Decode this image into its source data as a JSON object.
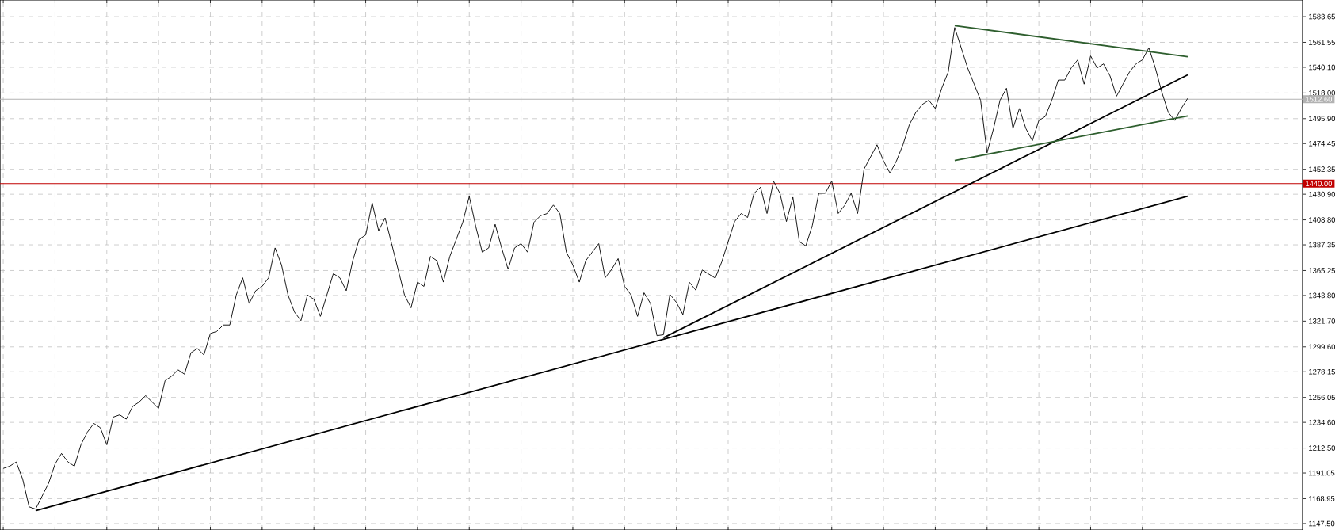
{
  "chart_data": {
    "type": "line",
    "categories": [
      null,
      null,
      null,
      null,
      null,
      null,
      null,
      null,
      null,
      null,
      null,
      null,
      null,
      null,
      null,
      null,
      null,
      null,
      null,
      null,
      null,
      null,
      null,
      null,
      null,
      null,
      null,
      null,
      null,
      null,
      null,
      null,
      null,
      null,
      null,
      null,
      null,
      null,
      null,
      null,
      null,
      null,
      null,
      null,
      null,
      null,
      null,
      null,
      null,
      null,
      null,
      null,
      null,
      null,
      null,
      null,
      null,
      null,
      null,
      null,
      null,
      null,
      null,
      null,
      null,
      null,
      null,
      null,
      null,
      null,
      null,
      null,
      null,
      null,
      null,
      null,
      null,
      null,
      null,
      null,
      null,
      null,
      null,
      null,
      null,
      null,
      null,
      null,
      null,
      null,
      null,
      null,
      null,
      null,
      null,
      null,
      null,
      null,
      null,
      null,
      null,
      null,
      null,
      null,
      null,
      null,
      null,
      null,
      null,
      null,
      null,
      null,
      null,
      null,
      null,
      null,
      null,
      null,
      null,
      null,
      null,
      null,
      null,
      null,
      null,
      null,
      null,
      null,
      null,
      null,
      null,
      null,
      null,
      null,
      null,
      null,
      null,
      null,
      null,
      null,
      null,
      null,
      null,
      null,
      null,
      null,
      null,
      null,
      null,
      null,
      null,
      null,
      null,
      null,
      null,
      null,
      null,
      null,
      null,
      null,
      null,
      null,
      null,
      null,
      null,
      null,
      null,
      null,
      null,
      null,
      null,
      null,
      null,
      null,
      null,
      null,
      null,
      null,
      null,
      null,
      null,
      null,
      null,
      null
    ],
    "series": [
      {
        "color": "#000000",
        "values": [
          1195.0,
          1196.9,
          1200.5,
          1185.8,
          1161.9,
          1160.0,
          1171.1,
          1182.1,
          1198.7,
          1207.9,
          1200.5,
          1196.9,
          1215.3,
          1226.3,
          1233.7,
          1230.0,
          1215.3,
          1239.2,
          1241.1,
          1237.4,
          1248.4,
          1252.1,
          1257.6,
          1252.1,
          1246.6,
          1270.5,
          1274.2,
          1279.8,
          1276.1,
          1294.5,
          1298.2,
          1292.6,
          1311.1,
          1312.9,
          1318.4,
          1318.4,
          1344.2,
          1359.0,
          1336.9,
          1347.9,
          1351.6,
          1359.0,
          1384.7,
          1370.0,
          1344.2,
          1329.5,
          1322.1,
          1344.2,
          1340.5,
          1325.8,
          1344.2,
          1362.6,
          1359.0,
          1347.9,
          1373.7,
          1392.1,
          1395.8,
          1423.4,
          1399.5,
          1410.5,
          1388.4,
          1366.3,
          1344.2,
          1333.2,
          1355.3,
          1351.6,
          1377.4,
          1373.7,
          1355.3,
          1377.4,
          1392.1,
          1406.8,
          1429.0,
          1403.2,
          1381.1,
          1384.7,
          1405.0,
          1384.7,
          1366.3,
          1384.7,
          1388.4,
          1381.1,
          1406.8,
          1412.4,
          1414.2,
          1421.6,
          1414.2,
          1381.1,
          1370.0,
          1355.3,
          1373.7,
          1381.1,
          1388.4,
          1359.0,
          1366.3,
          1375.5,
          1351.6,
          1344.2,
          1325.8,
          1346.1,
          1336.9,
          1309.2,
          1310.0,
          1344.8,
          1337.8,
          1327.4,
          1355.2,
          1348.3,
          1365.7,
          1362.2,
          1358.7,
          1372.6,
          1390.0,
          1407.4,
          1414.3,
          1410.9,
          1431.7,
          1437.0,
          1414.3,
          1442.2,
          1431.7,
          1407.4,
          1428.3,
          1390.0,
          1386.5,
          1403.9,
          1431.7,
          1431.7,
          1442.2,
          1414.3,
          1421.3,
          1431.7,
          1414.3,
          1452.6,
          1463.0,
          1473.4,
          1459.5,
          1449.1,
          1459.5,
          1473.4,
          1490.8,
          1501.3,
          1508.2,
          1511.7,
          1504.7,
          1522.1,
          1536.0,
          1574.3,
          1556.9,
          1539.5,
          1525.6,
          1511.7,
          1466.5,
          1487.4,
          1511.7,
          1522.1,
          1487.4,
          1504.7,
          1487.4,
          1476.9,
          1494.3,
          1497.8,
          1511.7,
          1529.1,
          1529.1,
          1539.5,
          1546.5,
          1525.6,
          1549.9,
          1539.5,
          1543.0,
          1532.6,
          1515.2,
          1525.6,
          1536.0,
          1543.0,
          1546.5,
          1556.9,
          1539.5,
          1518.7,
          1501.3,
          1494.3,
          1504.7,
          1513.4
        ]
      },
      {
        "color": "#000000",
        "values": [
          null,
          null,
          null,
          null,
          null,
          1158.6,
          null,
          null,
          null,
          null,
          null,
          null,
          null,
          null,
          null,
          null,
          null,
          null,
          null,
          null,
          null,
          null,
          null,
          null,
          null,
          null,
          null,
          null,
          null,
          null,
          null,
          null,
          null,
          null,
          null,
          null,
          null,
          null,
          null,
          null,
          null,
          null,
          null,
          null,
          null,
          null,
          null,
          null,
          null,
          null,
          null,
          null,
          null,
          null,
          null,
          null,
          null,
          null,
          null,
          null,
          null,
          null,
          null,
          null,
          null,
          null,
          null,
          null,
          null,
          null,
          null,
          null,
          null,
          null,
          null,
          null,
          null,
          null,
          null,
          null,
          null,
          null,
          null,
          null,
          null,
          null,
          null,
          null,
          null,
          null,
          null,
          null,
          null,
          null,
          null,
          null,
          null,
          null,
          null,
          null,
          null,
          null,
          null,
          null,
          null,
          null,
          null,
          null,
          null,
          null,
          null,
          null,
          null,
          null,
          null,
          null,
          null,
          null,
          null,
          null,
          null,
          null,
          null,
          null,
          null,
          null,
          null,
          null,
          null,
          null,
          null,
          null,
          null,
          null,
          null,
          null,
          null,
          null,
          null,
          null,
          null,
          null,
          null,
          null,
          null,
          null,
          null,
          null,
          null,
          null,
          null,
          null,
          null,
          null,
          null,
          null,
          null,
          null,
          null,
          null,
          null,
          null,
          null,
          null,
          null,
          null,
          null,
          null,
          null,
          null,
          null,
          null,
          null,
          null,
          null,
          null,
          null,
          null,
          null,
          null,
          null,
          null,
          null,
          1429.2
        ]
      },
      {
        "color": "#000000",
        "values": [
          null,
          null,
          null,
          null,
          null,
          null,
          null,
          null,
          null,
          null,
          null,
          null,
          null,
          null,
          null,
          null,
          null,
          null,
          null,
          null,
          null,
          null,
          null,
          null,
          null,
          null,
          null,
          null,
          null,
          null,
          null,
          null,
          null,
          null,
          null,
          null,
          null,
          null,
          null,
          null,
          null,
          null,
          null,
          null,
          null,
          null,
          null,
          null,
          null,
          null,
          null,
          null,
          null,
          null,
          null,
          null,
          null,
          null,
          null,
          null,
          null,
          null,
          null,
          null,
          null,
          null,
          null,
          null,
          null,
          null,
          null,
          null,
          null,
          null,
          null,
          null,
          null,
          null,
          null,
          null,
          null,
          null,
          null,
          null,
          null,
          null,
          null,
          null,
          null,
          null,
          null,
          null,
          null,
          null,
          null,
          null,
          null,
          null,
          null,
          null,
          null,
          null,
          1307.4,
          null,
          null,
          null,
          null,
          null,
          null,
          null,
          null,
          null,
          null,
          null,
          null,
          null,
          null,
          null,
          null,
          null,
          null,
          null,
          null,
          null,
          null,
          null,
          null,
          null,
          null,
          null,
          null,
          null,
          null,
          null,
          null,
          null,
          null,
          null,
          null,
          null,
          null,
          null,
          null,
          null,
          null,
          null,
          null,
          null,
          null,
          null,
          null,
          null,
          null,
          null,
          null,
          null,
          null,
          null,
          null,
          null,
          null,
          null,
          null,
          null,
          null,
          null,
          null,
          null,
          null,
          null,
          null,
          null,
          null,
          null,
          null,
          null,
          null,
          null,
          null,
          null,
          null,
          null,
          null,
          1533.6
        ]
      },
      {
        "color": "#2e5e2e",
        "values": [
          null,
          null,
          null,
          null,
          null,
          null,
          null,
          null,
          null,
          null,
          null,
          null,
          null,
          null,
          null,
          null,
          null,
          null,
          null,
          null,
          null,
          null,
          null,
          null,
          null,
          null,
          null,
          null,
          null,
          null,
          null,
          null,
          null,
          null,
          null,
          null,
          null,
          null,
          null,
          null,
          null,
          null,
          null,
          null,
          null,
          null,
          null,
          null,
          null,
          null,
          null,
          null,
          null,
          null,
          null,
          null,
          null,
          null,
          null,
          null,
          null,
          null,
          null,
          null,
          null,
          null,
          null,
          null,
          null,
          null,
          null,
          null,
          null,
          null,
          null,
          null,
          null,
          null,
          null,
          null,
          null,
          null,
          null,
          null,
          null,
          null,
          null,
          null,
          null,
          null,
          null,
          null,
          null,
          null,
          null,
          null,
          null,
          null,
          null,
          null,
          null,
          null,
          null,
          null,
          null,
          null,
          null,
          null,
          null,
          null,
          null,
          null,
          null,
          null,
          null,
          null,
          null,
          null,
          null,
          null,
          null,
          null,
          null,
          null,
          null,
          null,
          null,
          null,
          null,
          null,
          null,
          null,
          null,
          null,
          null,
          null,
          null,
          null,
          null,
          null,
          null,
          null,
          null,
          null,
          null,
          null,
          null,
          1576.0,
          null,
          null,
          null,
          null,
          null,
          null,
          null,
          null,
          null,
          null,
          null,
          null,
          null,
          null,
          null,
          null,
          null,
          null,
          null,
          null,
          null,
          null,
          null,
          null,
          null,
          null,
          null,
          null,
          null,
          null,
          null,
          null,
          null,
          null,
          null,
          1549.2
        ]
      },
      {
        "color": "#2e5e2e",
        "values": [
          null,
          null,
          null,
          null,
          null,
          null,
          null,
          null,
          null,
          null,
          null,
          null,
          null,
          null,
          null,
          null,
          null,
          null,
          null,
          null,
          null,
          null,
          null,
          null,
          null,
          null,
          null,
          null,
          null,
          null,
          null,
          null,
          null,
          null,
          null,
          null,
          null,
          null,
          null,
          null,
          null,
          null,
          null,
          null,
          null,
          null,
          null,
          null,
          null,
          null,
          null,
          null,
          null,
          null,
          null,
          null,
          null,
          null,
          null,
          null,
          null,
          null,
          null,
          null,
          null,
          null,
          null,
          null,
          null,
          null,
          null,
          null,
          null,
          null,
          null,
          null,
          null,
          null,
          null,
          null,
          null,
          null,
          null,
          null,
          null,
          null,
          null,
          null,
          null,
          null,
          null,
          null,
          null,
          null,
          null,
          null,
          null,
          null,
          null,
          null,
          null,
          null,
          null,
          null,
          null,
          null,
          null,
          null,
          null,
          null,
          null,
          null,
          null,
          null,
          null,
          null,
          null,
          null,
          null,
          null,
          null,
          null,
          null,
          null,
          null,
          null,
          null,
          null,
          null,
          null,
          null,
          null,
          null,
          null,
          null,
          null,
          null,
          null,
          null,
          null,
          null,
          null,
          null,
          null,
          null,
          null,
          null,
          1459.9,
          null,
          null,
          null,
          null,
          null,
          null,
          null,
          null,
          null,
          null,
          null,
          null,
          null,
          null,
          null,
          null,
          null,
          null,
          null,
          null,
          null,
          null,
          null,
          null,
          null,
          null,
          null,
          null,
          null,
          null,
          null,
          null,
          null,
          null,
          null,
          1498.2
        ]
      }
    ],
    "ylim": [
      1142,
      1598
    ],
    "yticks": [
      {
        "value": 1147.5,
        "label": "1147.50"
      },
      {
        "value": 1168.95,
        "label": "1168.95"
      },
      {
        "value": 1191.05,
        "label": "1191.05"
      },
      {
        "value": 1212.5,
        "label": "1212.50"
      },
      {
        "value": 1234.6,
        "label": "1234.60"
      },
      {
        "value": 1256.05,
        "label": "1256.05"
      },
      {
        "value": 1278.15,
        "label": "1278.15"
      },
      {
        "value": 1299.6,
        "label": "1299.60"
      },
      {
        "value": 1321.7,
        "label": "1321.70"
      },
      {
        "value": 1343.8,
        "label": "1343.80"
      },
      {
        "value": 1365.25,
        "label": "1365.25"
      },
      {
        "value": 1387.35,
        "label": "1387.35"
      },
      {
        "value": 1408.8,
        "label": "1408.80"
      },
      {
        "value": 1430.9,
        "label": "1430.90"
      },
      {
        "value": 1452.35,
        "label": "1452.35"
      },
      {
        "value": 1474.45,
        "label": "1474.45"
      },
      {
        "value": 1495.9,
        "label": "1495.90"
      },
      {
        "value": 1518.0,
        "label": "1518.00"
      },
      {
        "value": 1540.1,
        "label": "1540.10"
      },
      {
        "value": 1561.55,
        "label": "1561.55"
      },
      {
        "value": 1583.65,
        "label": "1583.65"
      }
    ],
    "ref_lines": [
      {
        "axis": "y",
        "value": 1440.0,
        "label": "1440.00",
        "color": "#c00000"
      },
      {
        "axis": "y",
        "value": 1512.6,
        "label": "1512.60",
        "color": "#b2b2b2"
      }
    ],
    "grid": true,
    "tick_labels": "y"
  }
}
